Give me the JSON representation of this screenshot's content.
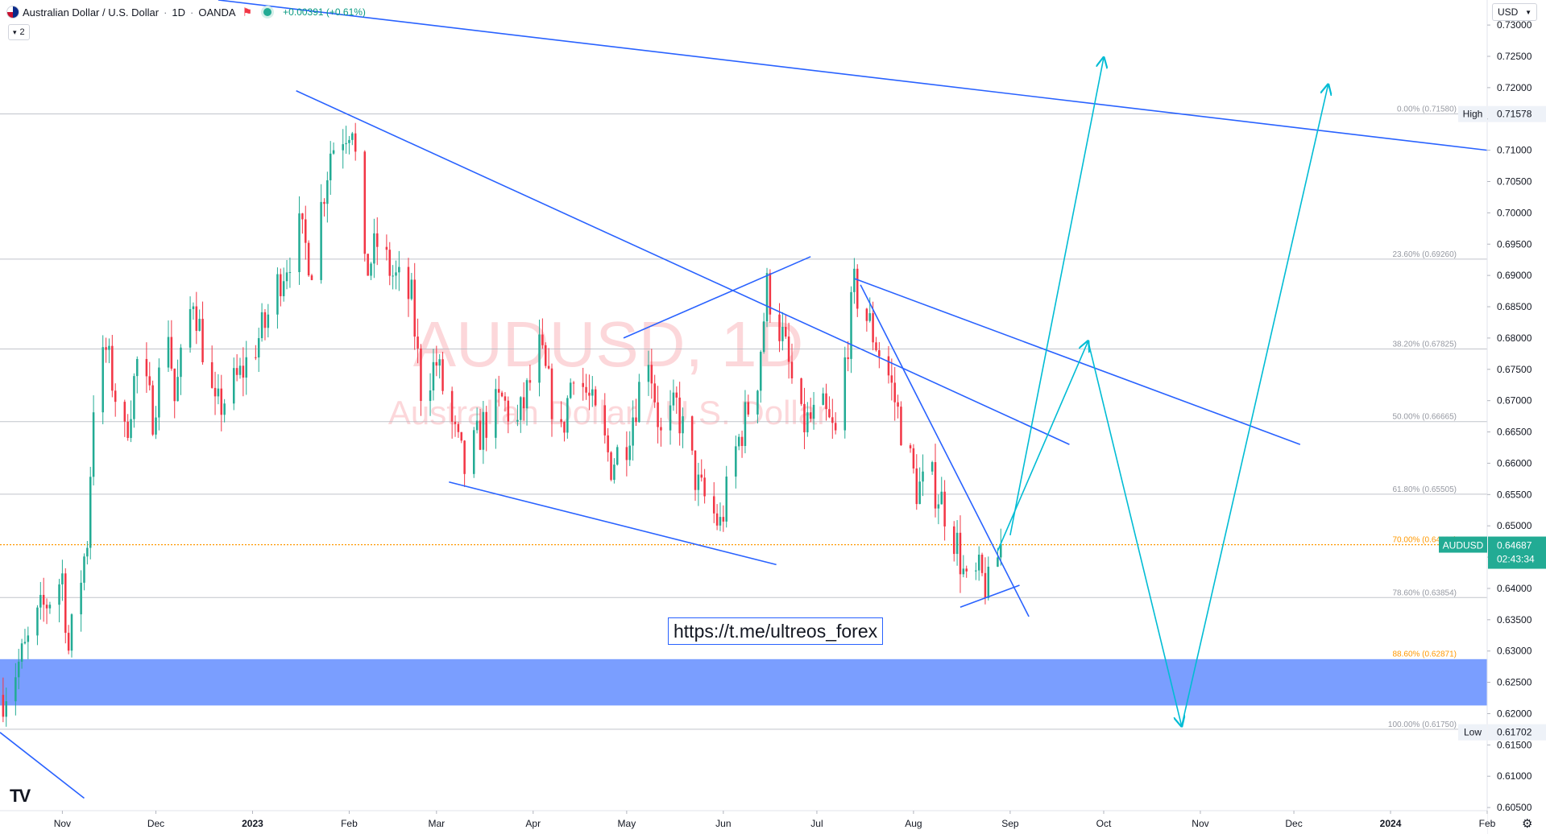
{
  "header": {
    "symbol_title": "Australian Dollar / U.S. Dollar",
    "interval": "1D",
    "exchange": "OANDA",
    "change": "+0.00391 (+0.61%)"
  },
  "indicator_badge": "2",
  "currency": "USD",
  "watermark": {
    "symbol": "AUDUSD, 1D",
    "name": "Australian Dollar / U.S. Dollar"
  },
  "link_text": "https://t.me/ultreos_forex",
  "colors": {
    "up": "#22ab94",
    "down": "#f23645",
    "trendline": "#2962ff",
    "projection": "#00bcd4",
    "zone": "#2962ff",
    "fib_orange": "#ff9800",
    "price_badge": "#22ab94"
  },
  "chart_data": {
    "type": "candlestick",
    "symbol": "AUDUSD",
    "interval": "1D",
    "y_ticks": [
      "0.73000",
      "0.72500",
      "0.72000",
      "0.71500",
      "0.71000",
      "0.70500",
      "0.70000",
      "0.69500",
      "0.69000",
      "0.68500",
      "0.68000",
      "0.67500",
      "0.67000",
      "0.66500",
      "0.66000",
      "0.65500",
      "0.65000",
      "0.64500",
      "0.64000",
      "0.63500",
      "0.63000",
      "0.62500",
      "0.62000",
      "0.61500",
      "0.61000",
      "0.60500"
    ],
    "ylim": [
      0.6045,
      0.734
    ],
    "x_ticks": [
      {
        "label": "Nov",
        "date": "2022-11-01"
      },
      {
        "label": "Dec",
        "date": "2022-12-01"
      },
      {
        "label": "2023",
        "date": "2023-01-01"
      },
      {
        "label": "Feb",
        "date": "2023-02-01"
      },
      {
        "label": "Mar",
        "date": "2023-03-01"
      },
      {
        "label": "Apr",
        "date": "2023-04-01"
      },
      {
        "label": "May",
        "date": "2023-05-01"
      },
      {
        "label": "Jun",
        "date": "2023-06-01"
      },
      {
        "label": "Jul",
        "date": "2023-07-01"
      },
      {
        "label": "Aug",
        "date": "2023-08-01"
      },
      {
        "label": "Sep",
        "date": "2023-09-01"
      },
      {
        "label": "Oct",
        "date": "2023-10-01"
      },
      {
        "label": "Nov",
        "date": "2023-11-01"
      },
      {
        "label": "Dec",
        "date": "2023-12-01"
      },
      {
        "label": "2024",
        "date": "2024-01-01"
      },
      {
        "label": "Feb",
        "date": "2024-02-01"
      }
    ],
    "xlim": [
      "2022-10-12",
      "2024-02-01"
    ],
    "price_path": [
      [
        "2022-10-13",
        0.623
      ],
      [
        "2022-10-20",
        0.63
      ],
      [
        "2022-10-25",
        0.636
      ],
      [
        "2022-11-01",
        0.642
      ],
      [
        "2022-11-03",
        0.63
      ],
      [
        "2022-11-09",
        0.648
      ],
      [
        "2022-11-11",
        0.67
      ],
      [
        "2022-11-15",
        0.678
      ],
      [
        "2022-11-21",
        0.664
      ],
      [
        "2022-11-25",
        0.676
      ],
      [
        "2022-11-30",
        0.668
      ],
      [
        "2022-12-05",
        0.682
      ],
      [
        "2022-12-07",
        0.67
      ],
      [
        "2022-12-13",
        0.687
      ],
      [
        "2022-12-20",
        0.668
      ],
      [
        "2022-12-28",
        0.674
      ],
      [
        "2023-01-05",
        0.682
      ],
      [
        "2023-01-10",
        0.69
      ],
      [
        "2023-01-16",
        0.697
      ],
      [
        "2023-01-20",
        0.692
      ],
      [
        "2023-01-26",
        0.71
      ],
      [
        "2023-02-02",
        0.715
      ],
      [
        "2023-02-06",
        0.69
      ],
      [
        "2023-02-10",
        0.695
      ],
      [
        "2023-02-15",
        0.69
      ],
      [
        "2023-02-21",
        0.686
      ],
      [
        "2023-02-24",
        0.672
      ],
      [
        "2023-03-01",
        0.676
      ],
      [
        "2023-03-07",
        0.664
      ],
      [
        "2023-03-10",
        0.659
      ],
      [
        "2023-03-16",
        0.666
      ],
      [
        "2023-03-22",
        0.67
      ],
      [
        "2023-03-27",
        0.666
      ],
      [
        "2023-04-03",
        0.678
      ],
      [
        "2023-04-10",
        0.664
      ],
      [
        "2023-04-14",
        0.676
      ],
      [
        "2023-04-19",
        0.67
      ],
      [
        "2023-04-26",
        0.66
      ],
      [
        "2023-05-01",
        0.664
      ],
      [
        "2023-05-08",
        0.678
      ],
      [
        "2023-05-12",
        0.664
      ],
      [
        "2023-05-17",
        0.669
      ],
      [
        "2023-05-24",
        0.656
      ],
      [
        "2023-05-31",
        0.65
      ],
      [
        "2023-06-05",
        0.662
      ],
      [
        "2023-06-12",
        0.674
      ],
      [
        "2023-06-15",
        0.688
      ],
      [
        "2023-06-20",
        0.68
      ],
      [
        "2023-06-26",
        0.666
      ],
      [
        "2023-07-03",
        0.668
      ],
      [
        "2023-07-07",
        0.664
      ],
      [
        "2023-07-13",
        0.688
      ],
      [
        "2023-07-18",
        0.682
      ],
      [
        "2023-07-24",
        0.674
      ],
      [
        "2023-07-28",
        0.666
      ],
      [
        "2023-08-02",
        0.656
      ],
      [
        "2023-08-07",
        0.657
      ],
      [
        "2023-08-10",
        0.654
      ],
      [
        "2023-08-15",
        0.647
      ],
      [
        "2023-08-18",
        0.64
      ],
      [
        "2023-08-22",
        0.642
      ],
      [
        "2023-08-25",
        0.64
      ],
      [
        "2023-08-29",
        0.6468
      ]
    ],
    "horizontal_levels": [
      {
        "name": "High",
        "value": 0.71578
      },
      {
        "name": "Low",
        "value": 0.61702
      }
    ],
    "fib_levels": [
      {
        "label": "0.00% (0.71580)",
        "value": 0.7158
      },
      {
        "label": "23.60% (0.69260)",
        "value": 0.6926
      },
      {
        "label": "38.20% (0.67825)",
        "value": 0.67825
      },
      {
        "label": "50.00% (0.66665)",
        "value": 0.66665
      },
      {
        "label": "61.80% (0.65505)",
        "value": 0.65505
      },
      {
        "label": "70.00% (0.64699)",
        "value": 0.64699
      },
      {
        "label": "78.60% (0.63854)",
        "value": 0.63854
      },
      {
        "label": "88.60% (0.62871)",
        "value": 0.62871
      },
      {
        "label": "100.00% (0.61750)",
        "value": 0.6175
      }
    ],
    "demand_zone": [
      0.6213,
      0.6287
    ],
    "current_price": {
      "label": "AUDUSD",
      "value": "0.64687",
      "countdown": "02:43:34"
    },
    "trendlines": [
      [
        [
          "2022-10-12",
          0.617
        ],
        [
          "2022-11-08",
          0.6065
        ]
      ],
      [
        [
          "2023-01-15",
          0.7195
        ],
        [
          "2023-09-20",
          0.663
        ]
      ],
      [
        [
          "2023-04-30",
          0.68
        ],
        [
          "2023-06-29",
          0.693
        ]
      ],
      [
        [
          "2023-03-05",
          0.657
        ],
        [
          "2023-06-18",
          0.6438
        ]
      ],
      [
        [
          "2022-12-21",
          0.734
        ],
        [
          "2024-02-01",
          0.71
        ]
      ],
      [
        [
          "2023-07-13",
          0.6895
        ],
        [
          "2023-12-03",
          0.663
        ]
      ],
      [
        [
          "2023-07-15",
          0.6885
        ],
        [
          "2023-09-07",
          0.6355
        ]
      ],
      [
        [
          "2023-08-16",
          0.637
        ],
        [
          "2023-09-04",
          0.6405
        ]
      ]
    ],
    "projection_path": [
      [
        "2023-08-28",
        0.646
      ],
      [
        "2023-09-26",
        0.6795
      ],
      [
        "2023-10-26",
        0.618
      ],
      [
        "2023-12-12",
        0.7205
      ]
    ],
    "projection_arrow": [
      [
        "2023-09-01",
        0.6485
      ],
      [
        "2023-10-01",
        0.7248
      ]
    ]
  }
}
